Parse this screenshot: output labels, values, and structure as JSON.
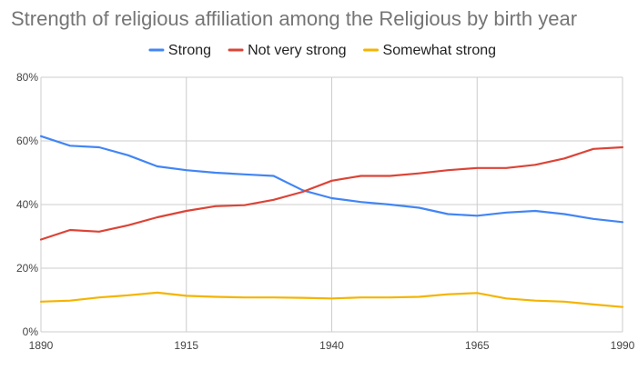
{
  "chart_data": {
    "type": "line",
    "title": "Strength of religious affiliation among the Religious by birth year",
    "xlabel": "",
    "ylabel": "",
    "xlim": [
      1890,
      1990
    ],
    "ylim": [
      0,
      80
    ],
    "x_ticks": [
      1890,
      1915,
      1940,
      1965,
      1990
    ],
    "x_tick_labels": [
      "1890",
      "1915",
      "1940",
      "1965",
      "1990"
    ],
    "y_ticks": [
      0,
      20,
      40,
      60,
      80
    ],
    "y_tick_labels": [
      "0%",
      "20%",
      "40%",
      "60%",
      "80%"
    ],
    "grid": true,
    "legend_position": "top",
    "x": [
      1890,
      1895,
      1900,
      1905,
      1910,
      1915,
      1920,
      1925,
      1930,
      1935,
      1940,
      1945,
      1950,
      1955,
      1960,
      1965,
      1970,
      1975,
      1980,
      1985,
      1990
    ],
    "series": [
      {
        "name": "Strong",
        "color": "#4285f4",
        "values": [
          61.5,
          58.5,
          58.0,
          55.5,
          52.0,
          50.8,
          50.0,
          49.5,
          49.0,
          44.5,
          42.0,
          40.8,
          40.0,
          39.0,
          37.0,
          36.5,
          37.5,
          38.0,
          37.0,
          35.5,
          34.5
        ]
      },
      {
        "name": "Not very strong",
        "color": "#db4437",
        "values": [
          29.0,
          32.0,
          31.5,
          33.5,
          36.0,
          38.0,
          39.5,
          39.8,
          41.5,
          44.0,
          47.5,
          49.0,
          49.0,
          49.8,
          50.8,
          51.5,
          51.5,
          52.5,
          54.5,
          57.5,
          58.0
        ]
      },
      {
        "name": "Somewhat strong",
        "color": "#f4b400",
        "values": [
          9.5,
          9.8,
          10.8,
          11.5,
          12.3,
          11.3,
          11.0,
          10.8,
          10.8,
          10.7,
          10.5,
          10.8,
          10.8,
          11.0,
          11.8,
          12.2,
          10.5,
          9.8,
          9.5,
          8.6,
          7.8
        ]
      }
    ]
  }
}
